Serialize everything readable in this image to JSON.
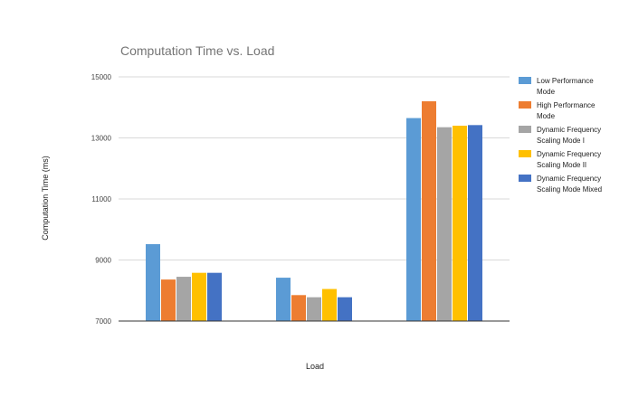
{
  "chart_data": {
    "type": "bar",
    "title": "Computation Time vs. Load",
    "xlabel": "Load",
    "ylabel": "Computation Time (ms)",
    "ylim": [
      7000,
      15000
    ],
    "yticks": [
      7000,
      9000,
      11000,
      13000,
      15000
    ],
    "grid": true,
    "legend_position": "right",
    "categories": [
      "",
      "",
      ""
    ],
    "series": [
      {
        "name": "Low Performance Mode",
        "legend_lines": [
          "Low Performance",
          "Mode"
        ],
        "color": "#5b9bd5",
        "values": [
          9520,
          8420,
          13650
        ]
      },
      {
        "name": "High Performance Mode",
        "legend_lines": [
          "High Performance",
          "Mode"
        ],
        "color": "#ed7d31",
        "values": [
          8360,
          7850,
          14200
        ]
      },
      {
        "name": "Dynamic Frequency Scaling Mode I",
        "legend_lines": [
          "Dynamic Frequency",
          "Scaling Mode I"
        ],
        "color": "#a5a5a5",
        "values": [
          8450,
          7780,
          13350
        ]
      },
      {
        "name": "Dynamic Frequency Scaling Mode II",
        "legend_lines": [
          "Dynamic Frequency",
          "Scaling Mode II"
        ],
        "color": "#ffc000",
        "values": [
          8580,
          8050,
          13400
        ]
      },
      {
        "name": "Dynamic Frequency Scaling Mode Mixed",
        "legend_lines": [
          "Dynamic Frequency",
          "Scaling Mode Mixed"
        ],
        "color": "#4472c4",
        "values": [
          8580,
          7780,
          13420
        ]
      }
    ]
  }
}
